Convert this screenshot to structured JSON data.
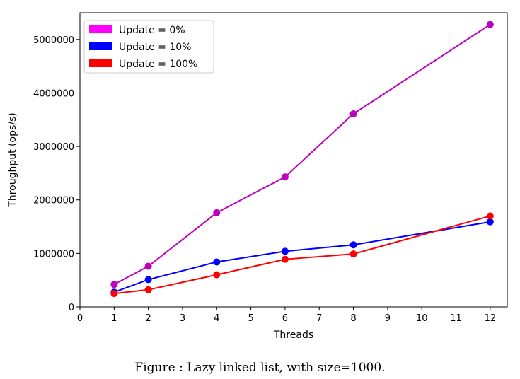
{
  "colors": {
    "update0": "#bf00bf",
    "update10": "#0000ff",
    "update100": "#ff0000",
    "legend_update0": "#ff00ff"
  },
  "chart_data": {
    "type": "line",
    "xlabel": "Threads",
    "ylabel": "Throughput (ops/s)",
    "xlim": [
      0,
      12.5
    ],
    "ylim": [
      0,
      5500000
    ],
    "xticks": [
      0,
      1,
      2,
      3,
      4,
      5,
      6,
      7,
      8,
      9,
      10,
      11,
      12
    ],
    "yticks": [
      0,
      1000000,
      2000000,
      3000000,
      4000000,
      5000000
    ],
    "grid": false,
    "legend_position": "top-left",
    "x": [
      1,
      2,
      4,
      6,
      8,
      12
    ],
    "series": [
      {
        "name": "Update = 0%",
        "color_key": "update0",
        "legend_color_key": "legend_update0",
        "values": [
          420000,
          760000,
          1760000,
          2430000,
          3610000,
          5280000
        ]
      },
      {
        "name": "Update = 10%",
        "color_key": "update10",
        "legend_color_key": "update10",
        "values": [
          275000,
          510000,
          840000,
          1040000,
          1160000,
          1590000
        ]
      },
      {
        "name": "Update = 100%",
        "color_key": "update100",
        "legend_color_key": "update100",
        "values": [
          250000,
          320000,
          600000,
          890000,
          990000,
          1700000
        ]
      }
    ]
  },
  "caption": "Figure   : Lazy linked list, with size=1000."
}
